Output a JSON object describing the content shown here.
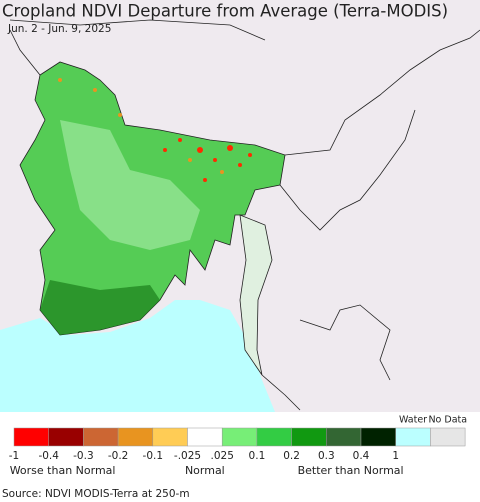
{
  "header": {
    "title": "Cropland NDVI Departure from Average (Terra-MODIS)",
    "subtitle": "Jun. 2 - Jun. 9, 2025"
  },
  "legend": {
    "water_label": "Water",
    "no_data_label": "No Data",
    "swatches": [
      "#ff0000",
      "#990000",
      "#cc6633",
      "#e89420",
      "#ffcc55",
      "#ffffff",
      "#77ee77",
      "#33cc44",
      "#119911",
      "#336633",
      "#002200",
      "#bbffff",
      "#e6e6e6"
    ],
    "tick_labels": [
      "-1",
      "-0.4",
      "-0.3",
      "-0.2",
      "-0.1",
      "-.025",
      ".025",
      "0.1",
      "0.2",
      "0.3",
      "0.4",
      "1"
    ],
    "groups": [
      "Worse than Normal",
      "Normal",
      "Better than Normal"
    ]
  },
  "footer": {
    "source": "Source: NDVI MODIS-Terra at 250-m"
  }
}
